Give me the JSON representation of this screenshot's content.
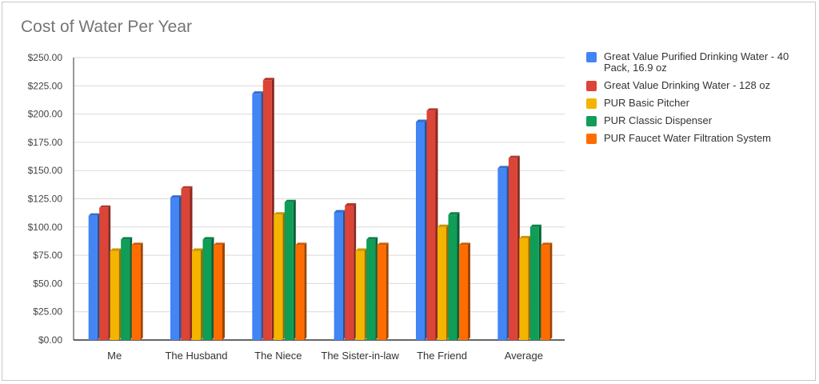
{
  "chart_data": {
    "type": "bar",
    "title": "Cost of Water Per Year",
    "xlabel": "",
    "ylabel": "",
    "ylim": [
      0,
      250
    ],
    "yticks": [
      0,
      25,
      50,
      75,
      100,
      125,
      150,
      175,
      200,
      225,
      250
    ],
    "ytick_labels": [
      "$0.00",
      "$25.00",
      "$50.00",
      "$75.00",
      "$100.00",
      "$125.00",
      "$150.00",
      "$175.00",
      "$200.00",
      "$225.00",
      "$250.00"
    ],
    "grid": true,
    "legend_position": "right",
    "categories": [
      "Me",
      "The Husband",
      "The Niece",
      "The Sister-in-law",
      "The Friend",
      "Average"
    ],
    "series": [
      {
        "name": "Great Value Purified Drinking Water - 40 Pack, 16.9 oz",
        "color": "#4285f4",
        "values": [
          110,
          126,
          218,
          113,
          193,
          152
        ]
      },
      {
        "name": "Great Value Drinking Water - 128 oz",
        "color": "#db4437",
        "values": [
          117,
          134,
          230,
          119,
          203,
          161
        ]
      },
      {
        "name": "PUR Basic Pitcher",
        "color": "#f4b400",
        "values": [
          79,
          79,
          111,
          79,
          100,
          90
        ]
      },
      {
        "name": "PUR Classic Dispenser",
        "color": "#0f9d58",
        "values": [
          89,
          89,
          122,
          89,
          111,
          100
        ]
      },
      {
        "name": "PUR Faucet Water Filtration System",
        "color": "#ff6d01",
        "values": [
          84,
          84,
          84,
          84,
          84,
          84
        ]
      }
    ]
  }
}
